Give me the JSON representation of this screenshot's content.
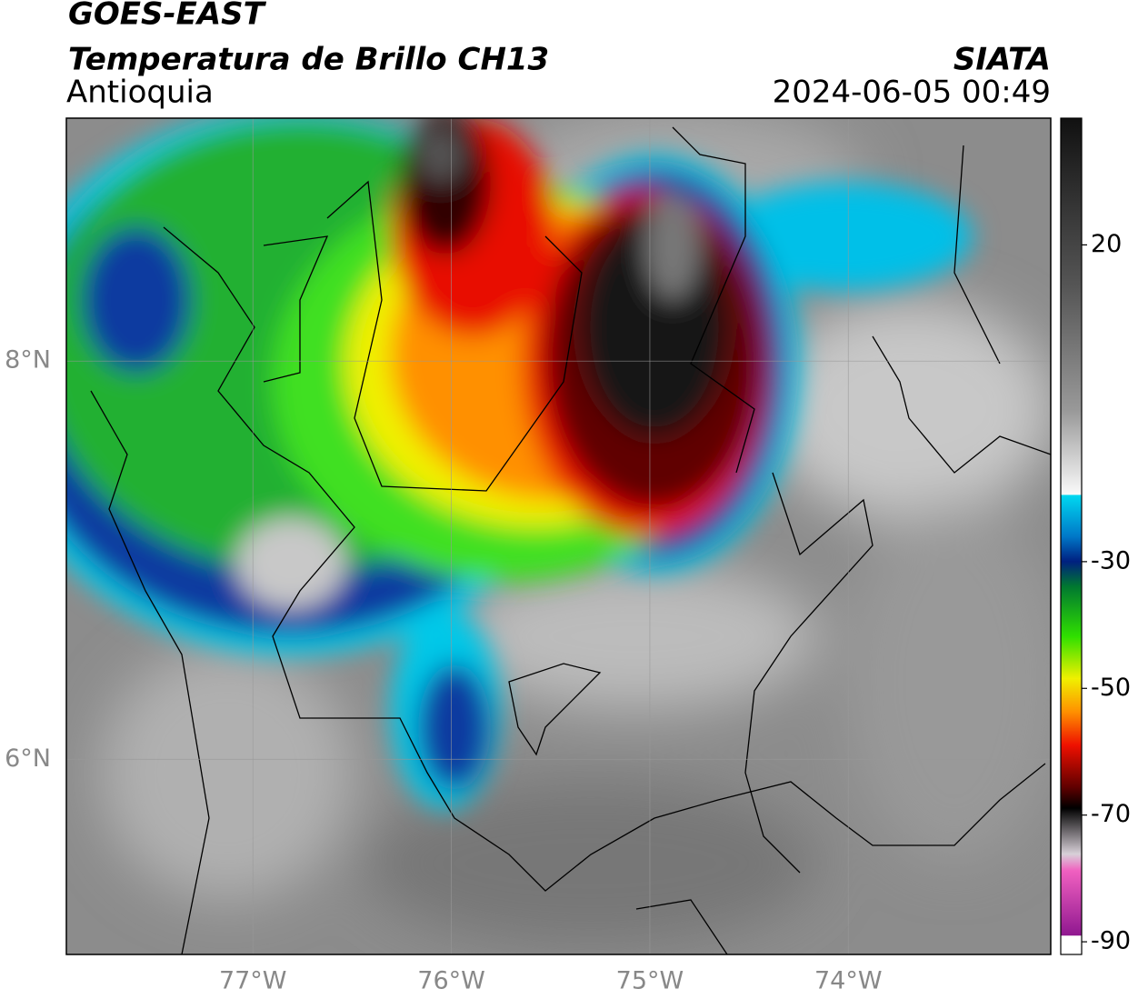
{
  "header": {
    "title": "GOES-EAST",
    "subtitle": "Temperatura de Brillo CH13",
    "region": "Antioquia",
    "source": "SIATA",
    "datetime": "2024-06-05 00:49"
  },
  "map": {
    "xlim": [
      -77.94,
      -72.98
    ],
    "ylim": [
      5.02,
      9.22
    ],
    "xticks": [
      {
        "value": -77,
        "label": "77°W"
      },
      {
        "value": -76,
        "label": "76°W"
      },
      {
        "value": -75,
        "label": "75°W"
      },
      {
        "value": -74,
        "label": "74°W"
      }
    ],
    "yticks": [
      {
        "value": 6,
        "label": "6°N"
      },
      {
        "value": 8,
        "label": "8°N"
      }
    ],
    "grid": true
  },
  "colorbar": {
    "lim": [
      -92,
      40
    ],
    "ticks": [
      20,
      -30,
      -50,
      -70,
      -90
    ]
  }
}
